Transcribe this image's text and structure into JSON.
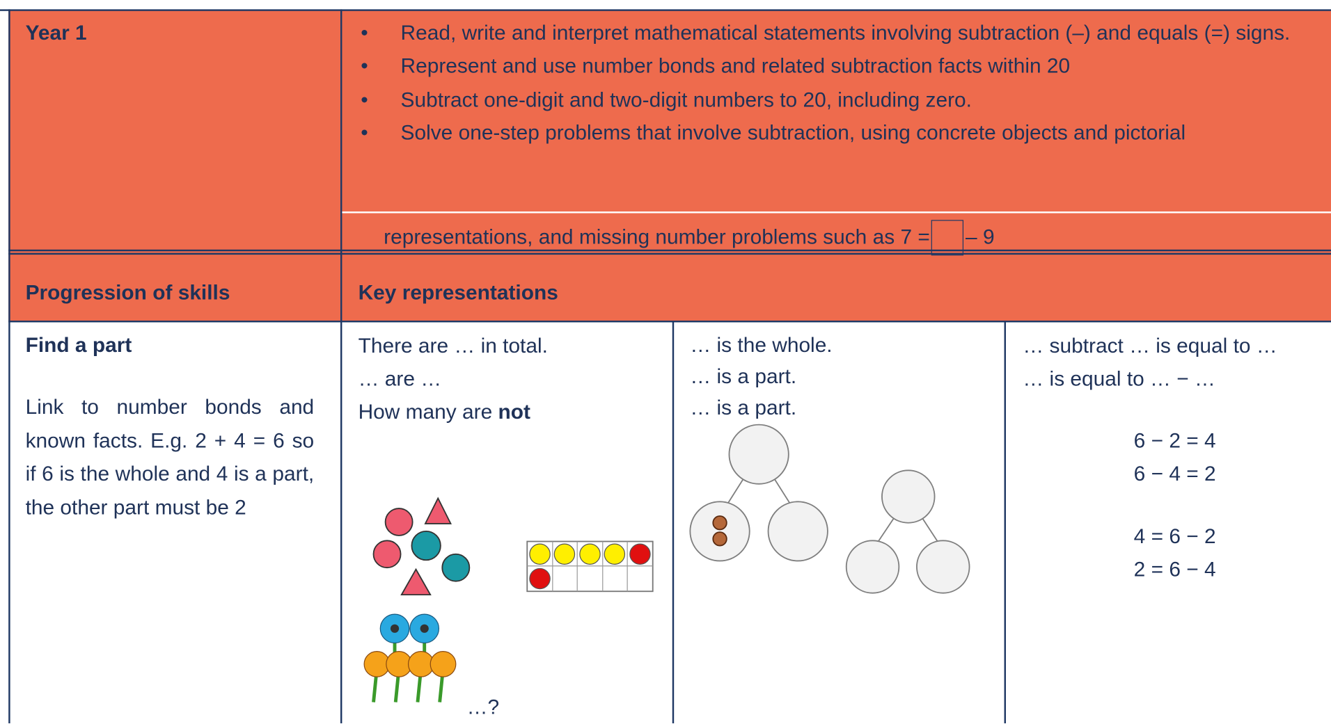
{
  "year": "Year 1",
  "objectives": [
    "Read, write and interpret mathematical statements involving subtraction (–) and equals (=) signs.",
    "Represent and use number bonds and related subtraction facts within 20",
    "Subtract one-digit and two-digit numbers to 20, including zero.",
    "Solve one-step problems that involve subtraction, using concrete objects and pictorial"
  ],
  "objective_continuation": {
    "before": "representations, and missing number problems such as 7 =",
    "after": "– 9"
  },
  "headers": [
    "Progression of skills",
    "Key representations"
  ],
  "skill": {
    "title": "Find a part",
    "description": "Link to number bonds and known facts. E.g. 2 + 4 = 6 so if 6 is the whole and 4 is a part, the other part must be 2"
  },
  "representations": [
    {
      "lines": [
        "There are … in total.",
        "… are …"
      ],
      "question": "How many are ",
      "question_bold": "not",
      "caption": "…?"
    },
    {
      "lines": [
        "… is the whole.",
        "… is a part.",
        "… is a part."
      ]
    },
    {
      "lines": [
        "… subtract … is equal to …",
        "… is equal to … − …"
      ],
      "equations": [
        "6 − 2 = 4",
        "6 − 4 = 2",
        "4 = 6 − 2",
        "2 = 6 − 4"
      ]
    }
  ]
}
